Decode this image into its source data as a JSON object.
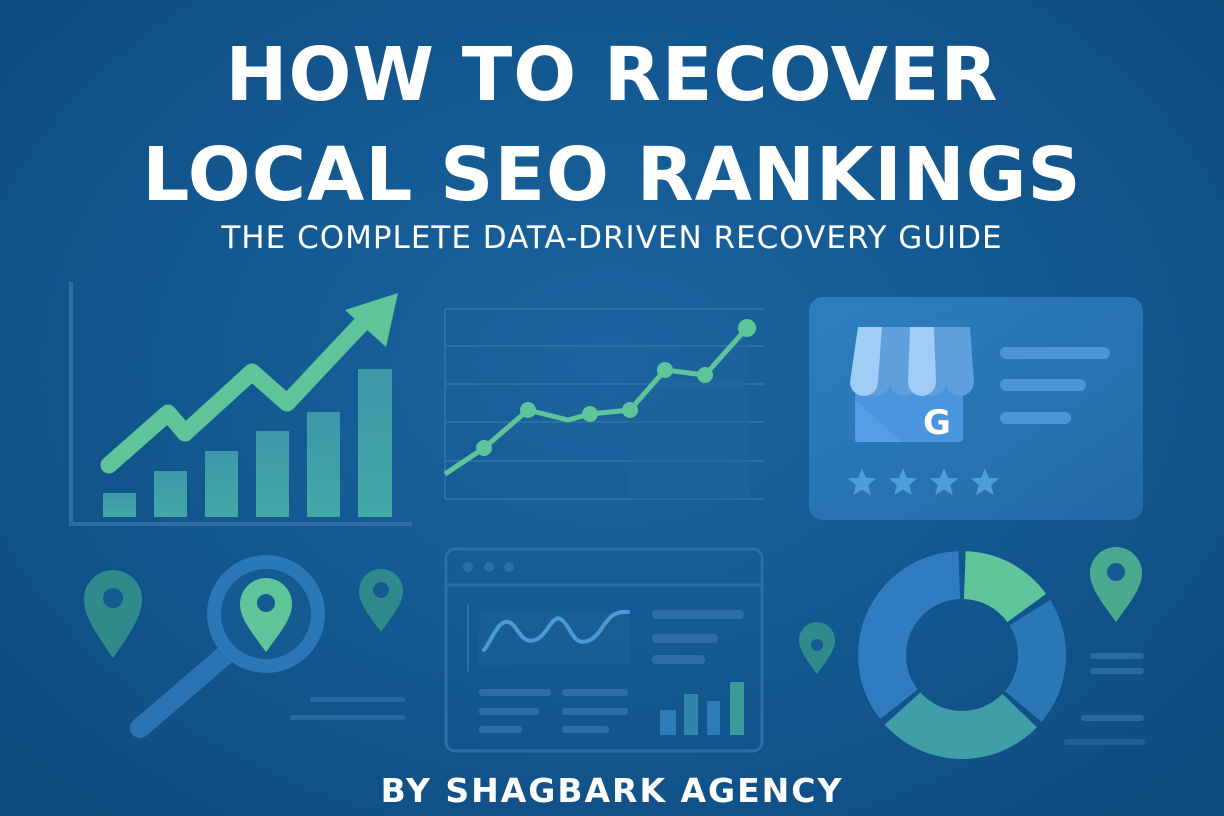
{
  "header": {
    "title_line1": "HOW TO RECOVER",
    "title_line2": "LOCAL SEO RANKINGS",
    "subtitle": "THE COMPLETE DATA-DRIVEN RECOVERY GUIDE"
  },
  "footer": {
    "byline": "BY SHAGBARK AGENCY"
  },
  "business_profile_card": {
    "logo_letter": "G",
    "stars_shown": 4
  },
  "icons": [
    "trend-up-bar-chart-icon",
    "line-chart-icon",
    "google-business-profile-icon",
    "star-icon",
    "map-pin-icon",
    "magnifier-icon",
    "dashboard-window-icon",
    "donut-chart-icon"
  ],
  "colors": {
    "background": "#135791",
    "accent_green": "#5ec59a",
    "teal_bars": "#3f9fa8",
    "card_blue": "#2a78b8",
    "store_blue": "#4a95dd",
    "text": "#ffffff"
  }
}
